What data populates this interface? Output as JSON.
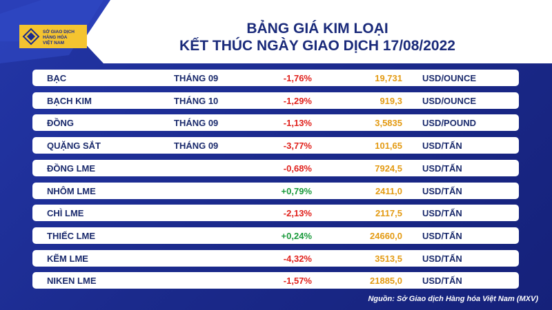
{
  "logo": {
    "lines": [
      "SỞ GIAO DỊCH",
      "HÀNG HÓA",
      "VIỆT NAM"
    ]
  },
  "header": {
    "title": "BẢNG GIÁ KIM LOẠI",
    "subtitle": "KẾT THÚC NGÀY GIAO DỊCH 17/08/2022"
  },
  "table": {
    "rows": [
      {
        "name": "BẠC",
        "month": "THÁNG 09",
        "change": "-1,76%",
        "price": "19,731",
        "unit": "USD/OUNCE"
      },
      {
        "name": "BẠCH KIM",
        "month": "THÁNG 10",
        "change": "-1,29%",
        "price": "919,3",
        "unit": "USD/OUNCE"
      },
      {
        "name": "ĐỒNG",
        "month": "THÁNG 09",
        "change": "-1,13%",
        "price": "3,5835",
        "unit": "USD/POUND"
      },
      {
        "name": "QUẶNG SẮT",
        "month": "THÁNG 09",
        "change": "-3,77%",
        "price": "101,65",
        "unit": "USD/TẤN"
      },
      {
        "name": "ĐỒNG LME",
        "change": "-0,68%",
        "price": "7924,5",
        "unit": "USD/TẤN"
      },
      {
        "name": "NHÔM LME",
        "change": "+0,79%",
        "price": "2411,0",
        "unit": "USD/TẤN"
      },
      {
        "name": "CHÌ LME",
        "change": "-2,13%",
        "price": "2117,5",
        "unit": "USD/TẤN"
      },
      {
        "name": "THIẾC LME",
        "change": "+0,24%",
        "price": "24660,0",
        "unit": "USD/TẤN"
      },
      {
        "name": "KẼM LME",
        "change": "-4,32%",
        "price": "3513,5",
        "unit": "USD/TẤN"
      },
      {
        "name": "NIKEN LME",
        "change": "-1,57%",
        "price": "21885,0",
        "unit": "USD/TẤN"
      }
    ]
  },
  "source": "Nguồn: Sở Giao dịch Hàng hóa Việt Nam (MXV)"
}
